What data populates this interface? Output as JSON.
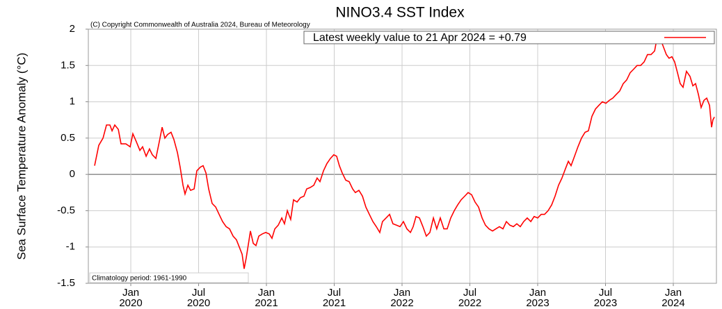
{
  "chart_data": {
    "type": "line",
    "title": "NINO3.4 SST Index",
    "y_label": "Sea Surface Temperature Anomaly (°C)",
    "annotations": [
      "(C) Copyright Commonwealth of Australia 2024, Bureau of Meteorology",
      "Climatology period: 1961-1990"
    ],
    "xlim": [
      2019.687,
      2024.318
    ],
    "xticks": [
      {
        "value": 2020,
        "label": "Jan\n2020"
      },
      {
        "value": 2020.5,
        "label": "Jul\n2020"
      },
      {
        "value": 2021,
        "label": "Jan\n2021"
      },
      {
        "value": 2021.5,
        "label": "Jul\n2021"
      },
      {
        "value": 2022,
        "label": "Jan\n2022"
      },
      {
        "value": 2022.5,
        "label": "Jul\n2022"
      },
      {
        "value": 2023,
        "label": "Jan\n2023"
      },
      {
        "value": 2023.5,
        "label": "Jul\n2023"
      },
      {
        "value": 2024,
        "label": "Jan\n2024"
      }
    ],
    "ylim": [
      -1.5,
      2
    ],
    "yticks": [
      -1.5,
      -1,
      -0.5,
      0,
      0.5,
      1,
      1.5,
      2
    ],
    "grid": true,
    "legend": "top-right",
    "x": [
      2019.733,
      2019.764,
      2019.795,
      2019.821,
      2019.846,
      2019.862,
      2019.882,
      2019.908,
      2019.928,
      2019.964,
      2019.995,
      2020.015,
      2020.041,
      2020.067,
      2020.087,
      2020.113,
      2020.138,
      2020.159,
      2020.185,
      2020.21,
      2020.231,
      2020.251,
      2020.272,
      2020.297,
      2020.318,
      2020.344,
      2020.364,
      2020.385,
      2020.4,
      2020.421,
      2020.441,
      2020.467,
      2020.487,
      2020.513,
      2020.533,
      2020.554,
      2020.574,
      2020.6,
      2020.626,
      2020.651,
      2020.677,
      2020.703,
      2020.728,
      2020.754,
      2020.779,
      2020.8,
      2020.821,
      2020.836,
      2020.851,
      2020.872,
      2020.882,
      2020.903,
      2020.923,
      2020.944,
      2020.969,
      2020.995,
      2021.021,
      2021.041,
      2021.062,
      2021.087,
      2021.113,
      2021.133,
      2021.154,
      2021.179,
      2021.2,
      2021.226,
      2021.251,
      2021.277,
      2021.297,
      2021.323,
      2021.349,
      2021.374,
      2021.395,
      2021.421,
      2021.446,
      2021.472,
      2021.497,
      2021.518,
      2021.538,
      2021.559,
      2021.585,
      2021.61,
      2021.636,
      2021.656,
      2021.682,
      2021.708,
      2021.733,
      2021.759,
      2021.785,
      2021.81,
      2021.836,
      2021.856,
      2021.882,
      2021.908,
      2021.933,
      2021.959,
      2021.985,
      2022.01,
      2022.036,
      2022.062,
      2022.082,
      2022.103,
      2022.128,
      2022.154,
      2022.179,
      2022.205,
      2022.231,
      2022.256,
      2022.282,
      2022.308,
      2022.333,
      2022.359,
      2022.385,
      2022.41,
      2022.436,
      2022.462,
      2022.487,
      2022.513,
      2022.538,
      2022.564,
      2022.59,
      2022.615,
      2022.641,
      2022.667,
      2022.692,
      2022.718,
      2022.744,
      2022.769,
      2022.795,
      2022.821,
      2022.846,
      2022.872,
      2022.897,
      2022.923,
      2022.949,
      2022.974,
      2023.0,
      2023.026,
      2023.051,
      2023.077,
      2023.103,
      2023.128,
      2023.154,
      2023.179,
      2023.205,
      2023.226,
      2023.246,
      2023.272,
      2023.297,
      2023.323,
      2023.349,
      2023.374,
      2023.4,
      2023.426,
      2023.451,
      2023.477,
      2023.503,
      2023.528,
      2023.554,
      2023.579,
      2023.605,
      2023.631,
      2023.656,
      2023.682,
      2023.708,
      2023.733,
      2023.759,
      2023.785,
      2023.81,
      2023.836,
      2023.862,
      2023.887,
      2023.908,
      2023.928,
      2023.949,
      2023.969,
      2023.99,
      2024.01,
      2024.031,
      2024.051,
      2024.072,
      2024.097,
      2024.123,
      2024.144,
      2024.164,
      2024.185,
      2024.205,
      2024.226,
      2024.246,
      2024.267,
      2024.282,
      2024.292,
      2024.303
    ],
    "series": [
      {
        "name": "Latest weekly value to 21 Apr 2024 = +0.79",
        "color": "#ff0000",
        "values": [
          0.12,
          0.4,
          0.5,
          0.68,
          0.68,
          0.6,
          0.68,
          0.62,
          0.42,
          0.42,
          0.38,
          0.56,
          0.45,
          0.33,
          0.38,
          0.25,
          0.35,
          0.27,
          0.22,
          0.45,
          0.65,
          0.5,
          0.55,
          0.58,
          0.48,
          0.3,
          0.1,
          -0.15,
          -0.27,
          -0.15,
          -0.22,
          -0.2,
          0.05,
          0.1,
          0.12,
          0.02,
          -0.2,
          -0.4,
          -0.45,
          -0.55,
          -0.65,
          -0.72,
          -0.75,
          -0.85,
          -0.9,
          -1.0,
          -1.1,
          -1.3,
          -1.15,
          -0.9,
          -0.78,
          -0.95,
          -0.98,
          -0.85,
          -0.82,
          -0.8,
          -0.82,
          -0.88,
          -0.75,
          -0.7,
          -0.6,
          -0.68,
          -0.5,
          -0.62,
          -0.35,
          -0.38,
          -0.32,
          -0.3,
          -0.2,
          -0.18,
          -0.15,
          -0.05,
          -0.1,
          0.05,
          0.15,
          0.22,
          0.27,
          0.25,
          0.12,
          0.02,
          -0.08,
          -0.1,
          -0.2,
          -0.25,
          -0.22,
          -0.3,
          -0.45,
          -0.55,
          -0.65,
          -0.72,
          -0.8,
          -0.65,
          -0.6,
          -0.55,
          -0.68,
          -0.7,
          -0.72,
          -0.65,
          -0.75,
          -0.8,
          -0.72,
          -0.58,
          -0.6,
          -0.72,
          -0.85,
          -0.8,
          -0.6,
          -0.75,
          -0.6,
          -0.75,
          -0.75,
          -0.6,
          -0.5,
          -0.42,
          -0.35,
          -0.3,
          -0.25,
          -0.28,
          -0.38,
          -0.45,
          -0.6,
          -0.7,
          -0.75,
          -0.78,
          -0.75,
          -0.72,
          -0.75,
          -0.65,
          -0.7,
          -0.72,
          -0.68,
          -0.72,
          -0.65,
          -0.6,
          -0.65,
          -0.58,
          -0.6,
          -0.55,
          -0.55,
          -0.5,
          -0.42,
          -0.3,
          -0.15,
          -0.05,
          0.08,
          0.18,
          0.12,
          0.25,
          0.38,
          0.5,
          0.58,
          0.6,
          0.8,
          0.9,
          0.95,
          1.0,
          0.98,
          1.02,
          1.05,
          1.1,
          1.15,
          1.25,
          1.3,
          1.4,
          1.45,
          1.5,
          1.5,
          1.55,
          1.65,
          1.65,
          1.7,
          1.95,
          1.85,
          1.75,
          1.65,
          1.6,
          1.62,
          1.55,
          1.4,
          1.25,
          1.2,
          1.42,
          1.35,
          1.22,
          1.25,
          1.1,
          0.92,
          1.02,
          1.05,
          0.95,
          0.65,
          0.75,
          0.79
        ]
      }
    ]
  }
}
